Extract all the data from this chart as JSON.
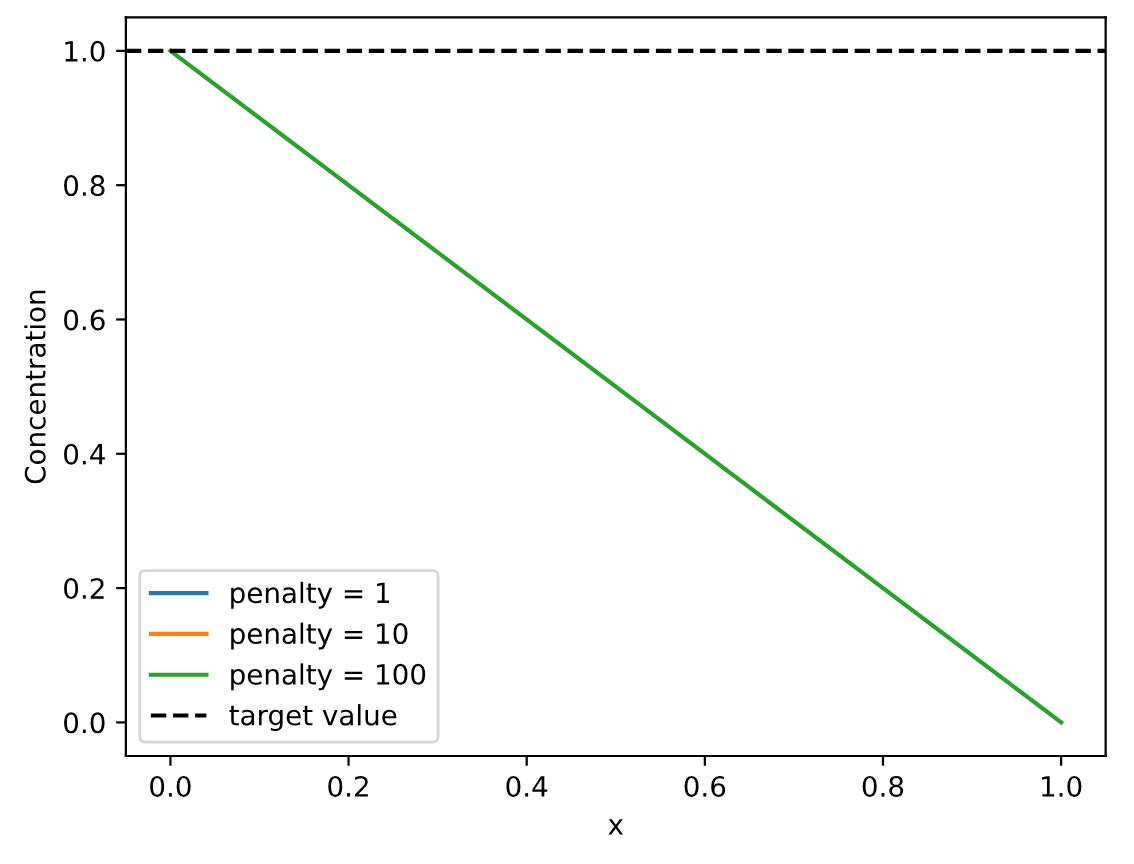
{
  "chart_data": {
    "type": "line",
    "xlabel": "x",
    "ylabel": "Concentration",
    "x": [
      0,
      1
    ],
    "series": [
      {
        "name": "penalty = 1",
        "color": "#1f77b4",
        "values": [
          null,
          null
        ]
      },
      {
        "name": "penalty = 10",
        "color": "#ff7f0e",
        "values": [
          null,
          null
        ]
      },
      {
        "name": "penalty = 100",
        "color": "#2ca02c",
        "values": [
          1,
          0
        ]
      }
    ],
    "ref_lines": [
      {
        "axis": "y",
        "value": 1,
        "label": "target value",
        "color": "#000000",
        "line_style": "dashed"
      }
    ],
    "xlim": [
      -0.05,
      1.05
    ],
    "ylim": [
      -0.05,
      1.05
    ],
    "xticks": [
      {
        "value": 0,
        "label": "0.0"
      },
      {
        "value": 0.2,
        "label": "0.2"
      },
      {
        "value": 0.4,
        "label": "0.4"
      },
      {
        "value": 0.6,
        "label": "0.6"
      },
      {
        "value": 0.8,
        "label": "0.8"
      },
      {
        "value": 1,
        "label": "1.0"
      }
    ],
    "yticks": [
      {
        "value": 0,
        "label": "0.0"
      },
      {
        "value": 0.2,
        "label": "0.2"
      },
      {
        "value": 0.4,
        "label": "0.4"
      },
      {
        "value": 0.6,
        "label": "0.6"
      },
      {
        "value": 0.8,
        "label": "0.8"
      },
      {
        "value": 1,
        "label": "1.0"
      }
    ],
    "grid": false,
    "legend": "lower left"
  }
}
